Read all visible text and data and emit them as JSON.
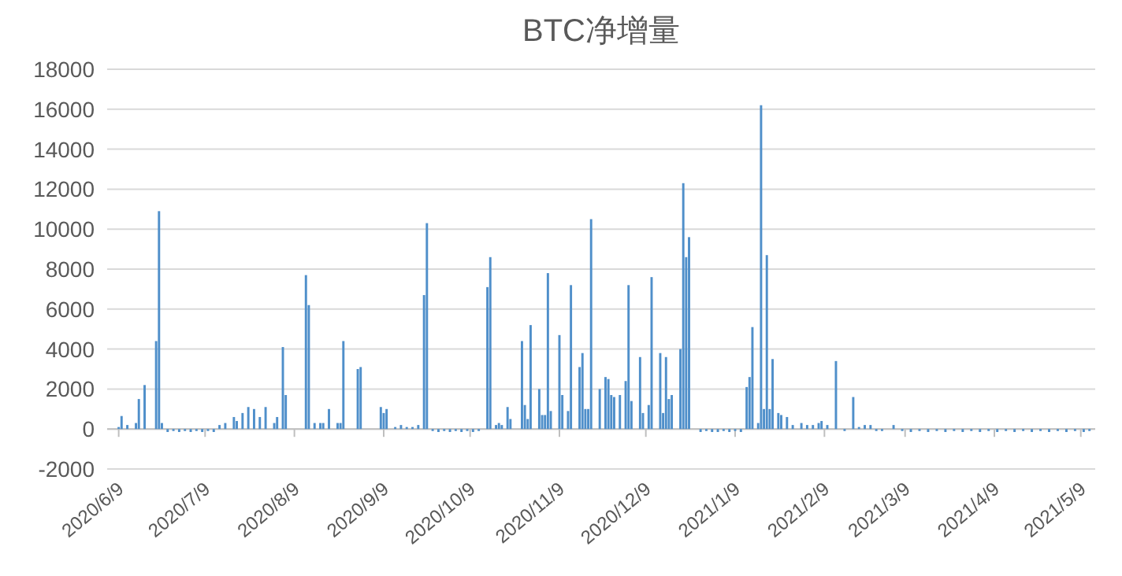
{
  "chart_data": {
    "type": "bar",
    "title": "BTC净增量",
    "color": "#4f8fca",
    "grid": "y",
    "xlim": [
      "2020-06-05",
      "2021-05-14"
    ],
    "xticks": [
      {
        "value": "2020-06-09",
        "label": "2020/6/9"
      },
      {
        "value": "2020-07-09",
        "label": "2020/7/9"
      },
      {
        "value": "2020-08-09",
        "label": "2020/8/9"
      },
      {
        "value": "2020-09-09",
        "label": "2020/9/9"
      },
      {
        "value": "2020-10-09",
        "label": "2020/10/9"
      },
      {
        "value": "2020-11-09",
        "label": "2020/11/9"
      },
      {
        "value": "2020-12-09",
        "label": "2020/12/9"
      },
      {
        "value": "2021-01-09",
        "label": "2021/1/9"
      },
      {
        "value": "2021-02-09",
        "label": "2021/2/9"
      },
      {
        "value": "2021-03-09",
        "label": "2021/3/9"
      },
      {
        "value": "2021-04-09",
        "label": "2021/4/9"
      },
      {
        "value": "2021-05-09",
        "label": "2021/5/9"
      }
    ],
    "ylim": [
      -2000,
      18000
    ],
    "yticks": [
      -2000,
      0,
      2000,
      4000,
      6000,
      8000,
      10000,
      12000,
      14000,
      16000,
      18000
    ],
    "x": [
      "2020-06-09",
      "2020-06-10",
      "2020-06-12",
      "2020-06-15",
      "2020-06-16",
      "2020-06-18",
      "2020-06-22",
      "2020-06-23",
      "2020-06-24",
      "2020-06-26",
      "2020-06-28",
      "2020-06-30",
      "2020-07-02",
      "2020-07-04",
      "2020-07-06",
      "2020-07-08",
      "2020-07-10",
      "2020-07-12",
      "2020-07-14",
      "2020-07-16",
      "2020-07-19",
      "2020-07-20",
      "2020-07-22",
      "2020-07-24",
      "2020-07-26",
      "2020-07-28",
      "2020-07-30",
      "2020-08-02",
      "2020-08-03",
      "2020-08-05",
      "2020-08-06",
      "2020-08-13",
      "2020-08-14",
      "2020-08-16",
      "2020-08-18",
      "2020-08-19",
      "2020-08-21",
      "2020-08-24",
      "2020-08-25",
      "2020-08-26",
      "2020-08-31",
      "2020-09-01",
      "2020-09-08",
      "2020-09-09",
      "2020-09-10",
      "2020-09-13",
      "2020-09-15",
      "2020-09-17",
      "2020-09-19",
      "2020-09-21",
      "2020-09-23",
      "2020-09-24",
      "2020-09-26",
      "2020-09-28",
      "2020-09-30",
      "2020-10-02",
      "2020-10-04",
      "2020-10-06",
      "2020-10-08",
      "2020-10-10",
      "2020-10-12",
      "2020-10-15",
      "2020-10-16",
      "2020-10-18",
      "2020-10-19",
      "2020-10-20",
      "2020-10-22",
      "2020-10-23",
      "2020-10-27",
      "2020-10-28",
      "2020-10-29",
      "2020-10-30",
      "2020-11-02",
      "2020-11-03",
      "2020-11-04",
      "2020-11-05",
      "2020-11-06",
      "2020-11-09",
      "2020-11-10",
      "2020-11-12",
      "2020-11-13",
      "2020-11-16",
      "2020-11-17",
      "2020-11-18",
      "2020-11-19",
      "2020-11-20",
      "2020-11-23",
      "2020-11-25",
      "2020-11-26",
      "2020-11-27",
      "2020-11-28",
      "2020-11-30",
      "2020-12-02",
      "2020-12-03",
      "2020-12-04",
      "2020-12-07",
      "2020-12-08",
      "2020-12-10",
      "2020-12-11",
      "2020-12-14",
      "2020-12-15",
      "2020-12-16",
      "2020-12-17",
      "2020-12-18",
      "2020-12-21",
      "2020-12-22",
      "2020-12-23",
      "2020-12-24",
      "2020-12-28",
      "2020-12-30",
      "2021-01-01",
      "2021-01-03",
      "2021-01-05",
      "2021-01-07",
      "2021-01-09",
      "2021-01-11",
      "2021-01-13",
      "2021-01-14",
      "2021-01-15",
      "2021-01-17",
      "2021-01-18",
      "2021-01-19",
      "2021-01-20",
      "2021-01-21",
      "2021-01-22",
      "2021-01-24",
      "2021-01-25",
      "2021-01-27",
      "2021-01-29",
      "2021-02-01",
      "2021-02-03",
      "2021-02-05",
      "2021-02-07",
      "2021-02-08",
      "2021-02-10",
      "2021-02-13",
      "2021-02-16",
      "2021-02-19",
      "2021-02-21",
      "2021-02-23",
      "2021-02-25",
      "2021-02-27",
      "2021-03-01",
      "2021-03-05",
      "2021-03-08",
      "2021-03-11",
      "2021-03-14",
      "2021-03-17",
      "2021-03-20",
      "2021-03-23",
      "2021-03-26",
      "2021-03-29",
      "2021-04-01",
      "2021-04-04",
      "2021-04-07",
      "2021-04-10",
      "2021-04-13",
      "2021-04-16",
      "2021-04-19",
      "2021-04-22",
      "2021-04-25",
      "2021-04-28",
      "2021-05-01",
      "2021-05-04",
      "2021-05-07",
      "2021-05-10",
      "2021-05-12"
    ],
    "values": [
      100,
      650,
      200,
      300,
      1500,
      2200,
      4400,
      10900,
      300,
      -150,
      -100,
      -150,
      -100,
      -150,
      -100,
      -150,
      -100,
      -150,
      200,
      300,
      600,
      400,
      800,
      1100,
      1000,
      600,
      1100,
      300,
      600,
      4100,
      1700,
      7700,
      6200,
      300,
      300,
      300,
      1000,
      300,
      300,
      4400,
      3000,
      3100,
      1100,
      800,
      1000,
      100,
      200,
      100,
      100,
      200,
      6700,
      10300,
      -100,
      -150,
      -100,
      -150,
      -100,
      -150,
      -100,
      -150,
      -100,
      7100,
      8600,
      200,
      300,
      200,
      1100,
      500,
      4400,
      1200,
      500,
      5200,
      2000,
      700,
      700,
      7800,
      900,
      4700,
      1700,
      900,
      7200,
      3100,
      3800,
      1000,
      1000,
      10500,
      2000,
      2600,
      2500,
      1700,
      1600,
      1700,
      2400,
      7200,
      1400,
      3600,
      800,
      1200,
      7600,
      3800,
      800,
      3600,
      1500,
      1700,
      4000,
      12300,
      8600,
      9600,
      -150,
      -100,
      -150,
      -150,
      -100,
      -150,
      -100,
      -150,
      2100,
      2600,
      5100,
      300,
      16200,
      1000,
      8700,
      1000,
      3500,
      800,
      700,
      600,
      200,
      300,
      200,
      200,
      300,
      400,
      200,
      3400,
      -100,
      1600,
      100,
      200,
      200,
      -100,
      -100,
      200,
      -100,
      -150,
      -100,
      -150,
      -100,
      -150,
      -100,
      -150,
      -100,
      -150,
      -100,
      -150,
      -100,
      -150,
      -100,
      -150,
      -100,
      -150,
      -100,
      -150,
      -100,
      -150,
      -100
    ]
  }
}
